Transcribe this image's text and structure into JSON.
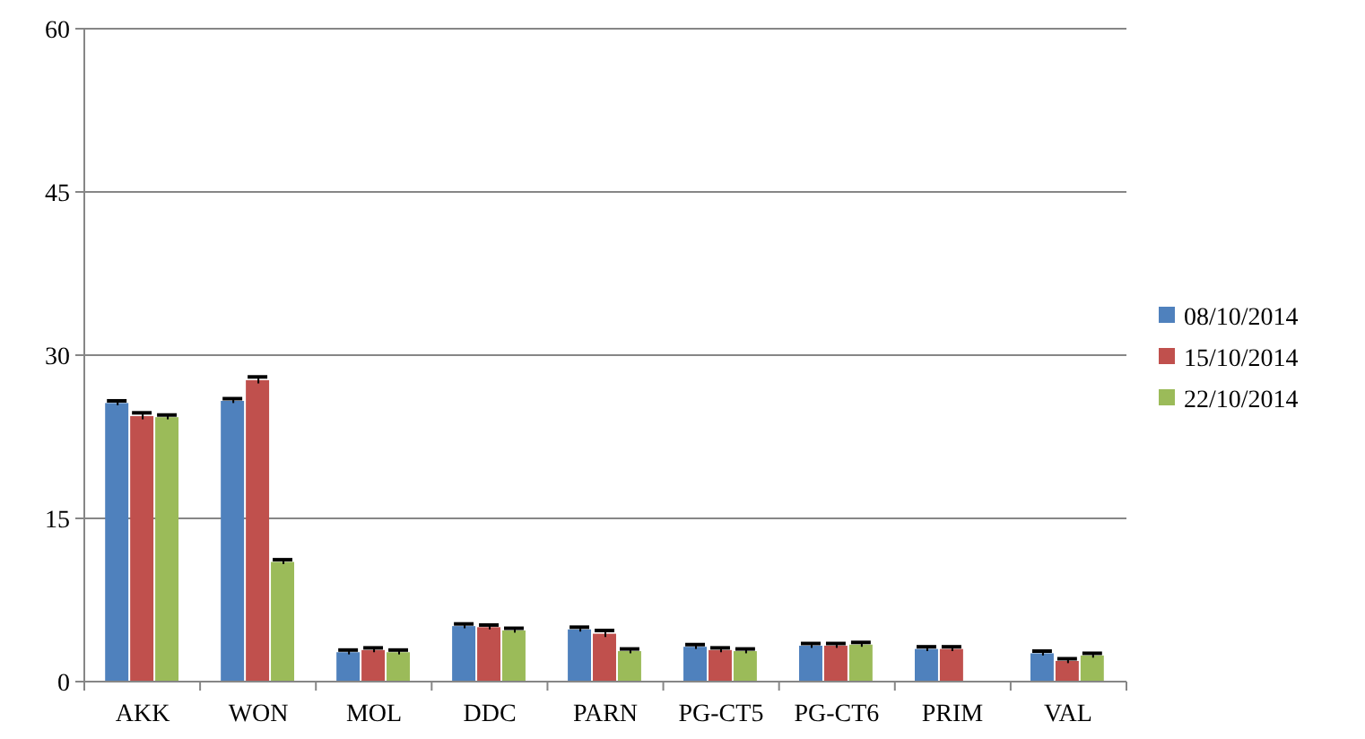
{
  "chart_data": {
    "type": "bar",
    "categories": [
      "AKK",
      "WON",
      "MOL",
      "DDC",
      "PARN",
      "PG-CT5",
      "PG-CT6",
      "PRIM",
      "VAL"
    ],
    "series": [
      {
        "name": "08/10/2014",
        "color": "#4f81bd",
        "values": [
          25.6,
          25.8,
          2.7,
          5.1,
          4.8,
          3.2,
          3.3,
          3.0,
          2.6
        ],
        "errors": [
          0.2,
          0.2,
          0.2,
          0.2,
          0.2,
          0.2,
          0.2,
          0.2,
          0.2
        ]
      },
      {
        "name": "15/10/2014",
        "color": "#c0504d",
        "values": [
          24.4,
          27.7,
          2.9,
          5.0,
          4.4,
          2.9,
          3.3,
          3.0,
          1.9
        ],
        "errors": [
          0.3,
          0.3,
          0.2,
          0.2,
          0.3,
          0.2,
          0.2,
          0.2,
          0.2
        ]
      },
      {
        "name": "22/10/2014",
        "color": "#9bbb59",
        "values": [
          24.3,
          11.0,
          2.7,
          4.7,
          2.8,
          2.8,
          3.4,
          null,
          2.4
        ],
        "errors": [
          0.2,
          0.2,
          0.2,
          0.2,
          0.2,
          0.2,
          0.2,
          null,
          0.2
        ]
      }
    ],
    "ylim": [
      0,
      60
    ],
    "yticks": [
      0,
      15,
      30,
      45,
      60
    ],
    "grid": "y",
    "legend": "right"
  }
}
